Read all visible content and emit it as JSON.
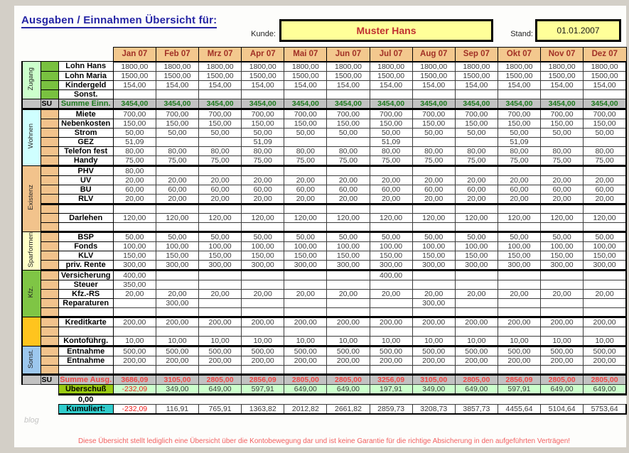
{
  "page": {
    "title": "Ausgaben / Einnahmen Übersicht für:",
    "kunde_label": "Kunde:",
    "kunde_value": "Muster Hans",
    "stand_label": "Stand:",
    "stand_value": "01.01.2007",
    "footer": "Diese Übersicht stellt lediglich eine Übersicht über die Kontobewegung dar und ist keine Garantie für die richtige Absicherung in den aufgeführten Verträgen!",
    "watermark": "blog"
  },
  "colors": {
    "accent_blue": "#2525a5",
    "header_tan": "#f3c88e",
    "header_red": "#a13025",
    "su_gray": "#c2c2c2",
    "income_green": "#1d7a1d",
    "expense_red": "#f04848",
    "negative_red": "#f02020",
    "note_yellow": "#ffff99",
    "ueberschuss_green": "#9acb13",
    "ueberschuss_cells": "#ccffcc",
    "kumuliert_cyan": "#30cccc"
  },
  "months": [
    "Jan 07",
    "Feb 07",
    "Mrz 07",
    "Apr 07",
    "Mai 07",
    "Jun 07",
    "Jul 07",
    "Aug 07",
    "Sep 07",
    "Okt 07",
    "Nov 07",
    "Dez 07"
  ],
  "table": {
    "su_label": "SU",
    "groups": [
      {
        "label": "Zugang",
        "label_bg": "#ccffcc",
        "stripe_bg": "#79c140",
        "rows": [
          {
            "label": "Lohn Hans",
            "values": [
              "1800,00",
              "1800,00",
              "1800,00",
              "1800,00",
              "1800,00",
              "1800,00",
              "1800,00",
              "1800,00",
              "1800,00",
              "1800,00",
              "1800,00",
              "1800,00"
            ]
          },
          {
            "label": "Lohn Maria",
            "values": [
              "1500,00",
              "1500,00",
              "1500,00",
              "1500,00",
              "1500,00",
              "1500,00",
              "1500,00",
              "1500,00",
              "1500,00",
              "1500,00",
              "1500,00",
              "1500,00"
            ]
          },
          {
            "label": "Kindergeld",
            "values": [
              "154,00",
              "154,00",
              "154,00",
              "154,00",
              "154,00",
              "154,00",
              "154,00",
              "154,00",
              "154,00",
              "154,00",
              "154,00",
              "154,00"
            ]
          },
          {
            "label": "Sonst.",
            "values": [
              "",
              "",
              "",
              "",
              "",
              "",
              "",
              "",
              "",
              "",
              "",
              ""
            ]
          }
        ]
      },
      {
        "su": true,
        "label": "Summe Einn.",
        "color": "#1d7a1d",
        "thick_bottom": true,
        "values": [
          "3454,00",
          "3454,00",
          "3454,00",
          "3454,00",
          "3454,00",
          "3454,00",
          "3454,00",
          "3454,00",
          "3454,00",
          "3454,00",
          "3454,00",
          "3454,00"
        ]
      },
      {
        "label": "Wohnen",
        "label_bg": "#cfffff",
        "stripe_bg": "#f2c38c",
        "thick_bottom": true,
        "rows": [
          {
            "label": "Miete",
            "values": [
              "700,00",
              "700,00",
              "700,00",
              "700,00",
              "700,00",
              "700,00",
              "700,00",
              "700,00",
              "700,00",
              "700,00",
              "700,00",
              "700,00"
            ]
          },
          {
            "label": "Nebenkosten",
            "values": [
              "150,00",
              "150,00",
              "150,00",
              "150,00",
              "150,00",
              "150,00",
              "150,00",
              "150,00",
              "150,00",
              "150,00",
              "150,00",
              "150,00"
            ]
          },
          {
            "label": "Strom",
            "values": [
              "50,00",
              "50,00",
              "50,00",
              "50,00",
              "50,00",
              "50,00",
              "50,00",
              "50,00",
              "50,00",
              "50,00",
              "50,00",
              "50,00"
            ]
          },
          {
            "label": "GEZ",
            "values": [
              "51,09",
              "",
              "",
              "51,09",
              "",
              "",
              "51,09",
              "",
              "",
              "51,09",
              "",
              ""
            ]
          },
          {
            "label": "Telefon fest",
            "values": [
              "80,00",
              "80,00",
              "80,00",
              "80,00",
              "80,00",
              "80,00",
              "80,00",
              "80,00",
              "80,00",
              "80,00",
              "80,00",
              "80,00"
            ]
          },
          {
            "label": "Handy",
            "values": [
              "75,00",
              "75,00",
              "75,00",
              "75,00",
              "75,00",
              "75,00",
              "75,00",
              "75,00",
              "75,00",
              "75,00",
              "75,00",
              "75,00"
            ]
          }
        ]
      },
      {
        "label": "Existenz",
        "label_bg": "#f2c38c",
        "stripe_bg": "#f2c38c",
        "thick_bottom": true,
        "rows": [
          {
            "label": "PHV",
            "values": [
              "80,00",
              "",
              "",
              "",
              "",
              "",
              "",
              "",
              "",
              "",
              "",
              ""
            ]
          },
          {
            "label": "UV",
            "values": [
              "20,00",
              "20,00",
              "20,00",
              "20,00",
              "20,00",
              "20,00",
              "20,00",
              "20,00",
              "20,00",
              "20,00",
              "20,00",
              "20,00"
            ]
          },
          {
            "label": "BU",
            "values": [
              "60,00",
              "60,00",
              "60,00",
              "60,00",
              "60,00",
              "60,00",
              "60,00",
              "60,00",
              "60,00",
              "60,00",
              "60,00",
              "60,00"
            ]
          },
          {
            "label": "RLV",
            "values": [
              "20,00",
              "20,00",
              "20,00",
              "20,00",
              "20,00",
              "20,00",
              "20,00",
              "20,00",
              "20,00",
              "20,00",
              "20,00",
              "20,00"
            ],
            "thick": true
          },
          {
            "label": "",
            "values": [
              "",
              "",
              "",
              "",
              "",
              "",
              "",
              "",
              "",
              "",
              "",
              ""
            ]
          },
          {
            "label": "Darlehen",
            "values": [
              "120,00",
              "120,00",
              "120,00",
              "120,00",
              "120,00",
              "120,00",
              "120,00",
              "120,00",
              "120,00",
              "120,00",
              "120,00",
              "120,00"
            ]
          },
          {
            "label": "",
            "values": [
              "",
              "",
              "",
              "",
              "",
              "",
              "",
              "",
              "",
              "",
              "",
              ""
            ]
          }
        ]
      },
      {
        "label": "Sparformen",
        "label_bg": "#ffffc8",
        "stripe_bg": "#f2c38c",
        "thick_bottom": true,
        "rows": [
          {
            "label": "BSP",
            "values": [
              "50,00",
              "50,00",
              "50,00",
              "50,00",
              "50,00",
              "50,00",
              "50,00",
              "50,00",
              "50,00",
              "50,00",
              "50,00",
              "50,00"
            ]
          },
          {
            "label": "Fonds",
            "values": [
              "100,00",
              "100,00",
              "100,00",
              "100,00",
              "100,00",
              "100,00",
              "100,00",
              "100,00",
              "100,00",
              "100,00",
              "100,00",
              "100,00"
            ]
          },
          {
            "label": "KLV",
            "values": [
              "150,00",
              "150,00",
              "150,00",
              "150,00",
              "150,00",
              "150,00",
              "150,00",
              "150,00",
              "150,00",
              "150,00",
              "150,00",
              "150,00"
            ]
          },
          {
            "label": "priv. Rente",
            "values": [
              "300,00",
              "300,00",
              "300,00",
              "300,00",
              "300,00",
              "300,00",
              "300,00",
              "300,00",
              "300,00",
              "300,00",
              "300,00",
              "300,00"
            ]
          }
        ]
      },
      {
        "label": "Kfz.",
        "label_bg": "#7fc545",
        "stripe_bg": "#f2c38c",
        "thick_bottom": true,
        "rows": [
          {
            "label": "Versicherung",
            "values": [
              "400,00",
              "",
              "",
              "",
              "",
              "",
              "400,00",
              "",
              "",
              "",
              "",
              ""
            ]
          },
          {
            "label": "Steuer",
            "values": [
              "350,00",
              "",
              "",
              "",
              "",
              "",
              "",
              "",
              "",
              "",
              "",
              ""
            ]
          },
          {
            "label": "Kfz.-RS",
            "values": [
              "20,00",
              "20,00",
              "20,00",
              "20,00",
              "20,00",
              "20,00",
              "20,00",
              "20,00",
              "20,00",
              "20,00",
              "20,00",
              "20,00"
            ]
          },
          {
            "label": "Reparaturen",
            "values": [
              "",
              "300,00",
              "",
              "",
              "",
              "",
              "",
              "300,00",
              "",
              "",
              "",
              ""
            ]
          },
          {
            "label": "",
            "values": [
              "",
              "",
              "",
              "",
              "",
              "",
              "",
              "",
              "",
              "",
              "",
              ""
            ]
          }
        ]
      },
      {
        "label": "",
        "label_bg": "#ffc41e",
        "stripe_bg": "#f2c38c",
        "thick_bottom": true,
        "rows": [
          {
            "label": "Kreditkarte",
            "values": [
              "200,00",
              "200,00",
              "200,00",
              "200,00",
              "200,00",
              "200,00",
              "200,00",
              "200,00",
              "200,00",
              "200,00",
              "200,00",
              "200,00"
            ]
          },
          {
            "label": "",
            "values": [
              "",
              "",
              "",
              "",
              "",
              "",
              "",
              "",
              "",
              "",
              "",
              ""
            ]
          },
          {
            "label": "Kontoführg.",
            "values": [
              "10,00",
              "10,00",
              "10,00",
              "10,00",
              "10,00",
              "10,00",
              "10,00",
              "10,00",
              "10,00",
              "10,00",
              "10,00",
              "10,00"
            ]
          }
        ]
      },
      {
        "label": "Sonst.",
        "label_bg": "#9cc7ee",
        "stripe_bg": "#f2c38c",
        "rows": [
          {
            "label": "Entnahme",
            "values": [
              "500,00",
              "500,00",
              "500,00",
              "500,00",
              "500,00",
              "500,00",
              "500,00",
              "500,00",
              "500,00",
              "500,00",
              "500,00",
              "500,00"
            ]
          },
          {
            "label": "Entnahme",
            "values": [
              "200,00",
              "200,00",
              "200,00",
              "200,00",
              "200,00",
              "200,00",
              "200,00",
              "200,00",
              "200,00",
              "200,00",
              "200,00",
              "200,00"
            ]
          },
          {
            "label": "",
            "values": [
              "",
              "",
              "",
              "",
              "",
              "",
              "",
              "",
              "",
              "",
              "",
              ""
            ]
          }
        ]
      },
      {
        "su": true,
        "label": "Summe Ausg.",
        "color": "#f04848",
        "thick_top": true,
        "values": [
          "3686,09",
          "3105,00",
          "2805,00",
          "2856,09",
          "2805,00",
          "2805,00",
          "3256,09",
          "3105,00",
          "2805,00",
          "2856,09",
          "2805,00",
          "2805,00"
        ]
      }
    ],
    "ueberschuss": {
      "label": "Überschuß",
      "values": [
        "-232,09",
        "349,00",
        "649,00",
        "597,91",
        "649,00",
        "649,00",
        "197,91",
        "349,00",
        "649,00",
        "597,91",
        "649,00",
        "649,00"
      ]
    },
    "zero_value": "0,00",
    "kumuliert": {
      "label": "Kumuliert:",
      "values": [
        "-232,09",
        "116,91",
        "765,91",
        "1363,82",
        "2012,82",
        "2661,82",
        "2859,73",
        "3208,73",
        "3857,73",
        "4455,64",
        "5104,64",
        "5753,64"
      ]
    }
  }
}
